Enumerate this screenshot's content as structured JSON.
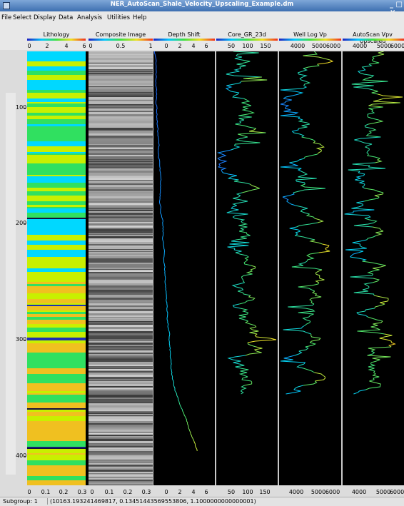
{
  "window": {
    "title": "NER_AutoScan_Shale_Velocity_Upscaling_Example.dm",
    "controls": "_ □ ×"
  },
  "menu": [
    "File",
    "Select",
    "Display",
    "Data",
    "Analysis",
    "Utilities",
    "Help"
  ],
  "depth_labels": [
    "100",
    "200",
    "300",
    "400"
  ],
  "tracks": [
    {
      "title": "Lithology",
      "top_scale": [
        "0",
        "2",
        "4",
        "6"
      ],
      "bottom_scale": [
        "0",
        "0.1",
        "0.2",
        "0.3"
      ]
    },
    {
      "title": "Composite Image",
      "top_scale": [
        "0",
        "0.5",
        "1"
      ],
      "bottom_scale": [
        "0",
        "0.1",
        "0.2",
        "0.3"
      ]
    },
    {
      "title": "Depth Shift",
      "top_scale": [
        "0",
        "2",
        "4",
        "6"
      ],
      "bottom_scale": [
        "0",
        "2",
        "4",
        "6"
      ]
    },
    {
      "title": "Core_GR_23d",
      "top_scale": [
        "50",
        "100",
        "150"
      ],
      "bottom_scale": [
        "50",
        "100",
        "150"
      ]
    },
    {
      "title": "Well Log Vp",
      "top_scale": [
        "4000",
        "5000",
        "6000"
      ],
      "bottom_scale": [
        "4000",
        "5000",
        "6000"
      ]
    },
    {
      "title": "AutoScan Vpv Upscaled",
      "top_scale": [
        "4000",
        "5000",
        "6000"
      ],
      "bottom_scale": [
        "4000",
        "5000",
        "6000"
      ]
    }
  ],
  "status": {
    "subgroup": "Subgroup: 1",
    "coordinates": "(10163.193241469817, 0.13451443569553806, 1.1000000000000001)"
  },
  "colors": {
    "canvas_bg": "#000000",
    "lith_yellow": "#c8f000",
    "lith_cyan": "#00d8ff",
    "lith_green": "#30e060",
    "lith_orange": "#f0c020"
  }
}
